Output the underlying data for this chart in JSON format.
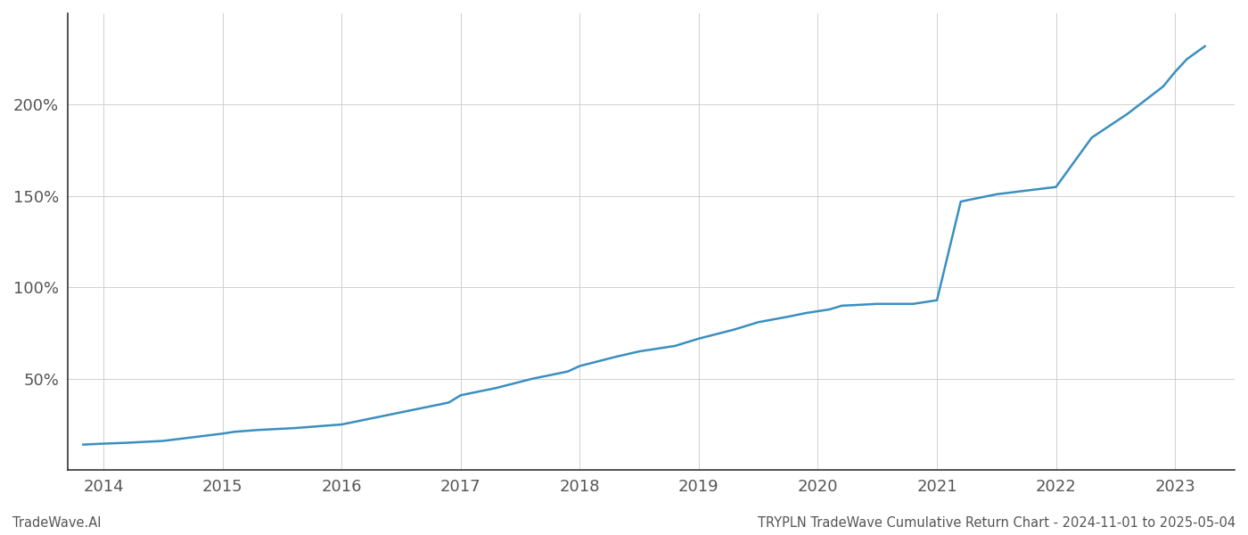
{
  "title": "TRYPLN TradeWave Cumulative Return Chart - 2024-11-01 to 2025-05-04",
  "watermark": "TradeWave.AI",
  "line_color": "#3a8fbf",
  "background_color": "#ffffff",
  "grid_color": "#d0d0d0",
  "x_years": [
    2013.83,
    2014.0,
    2014.2,
    2014.5,
    2014.75,
    2015.0,
    2015.1,
    2015.3,
    2015.6,
    2016.0,
    2016.3,
    2016.6,
    2016.9,
    2017.0,
    2017.3,
    2017.6,
    2017.9,
    2018.0,
    2018.3,
    2018.5,
    2018.8,
    2019.0,
    2019.3,
    2019.5,
    2019.75,
    2019.9,
    2020.0,
    2020.1,
    2020.2,
    2020.5,
    2020.7,
    2020.8,
    2021.0,
    2021.2,
    2021.5,
    2021.75,
    2022.0,
    2022.3,
    2022.6,
    2022.9,
    2023.0,
    2023.1,
    2023.25
  ],
  "y_values": [
    14,
    14.5,
    15,
    16,
    18,
    20,
    21,
    22,
    23,
    25,
    29,
    33,
    37,
    41,
    45,
    50,
    54,
    57,
    62,
    65,
    68,
    72,
    77,
    81,
    84,
    86,
    87,
    88,
    90,
    91,
    91,
    91,
    93,
    147,
    151,
    153,
    155,
    182,
    195,
    210,
    218,
    225,
    232
  ],
  "yticks": [
    50,
    100,
    150,
    200
  ],
  "ytick_labels": [
    "50%",
    "100%",
    "150%",
    "200%"
  ],
  "xticks": [
    2014,
    2015,
    2016,
    2017,
    2018,
    2019,
    2020,
    2021,
    2022,
    2023
  ],
  "xlim": [
    2013.7,
    2023.5
  ],
  "ylim": [
    0,
    250
  ],
  "tick_label_color": "#555555",
  "axis_color": "#333333",
  "line_width": 1.8,
  "title_fontsize": 10.5,
  "watermark_fontsize": 10.5,
  "tick_fontsize": 13
}
